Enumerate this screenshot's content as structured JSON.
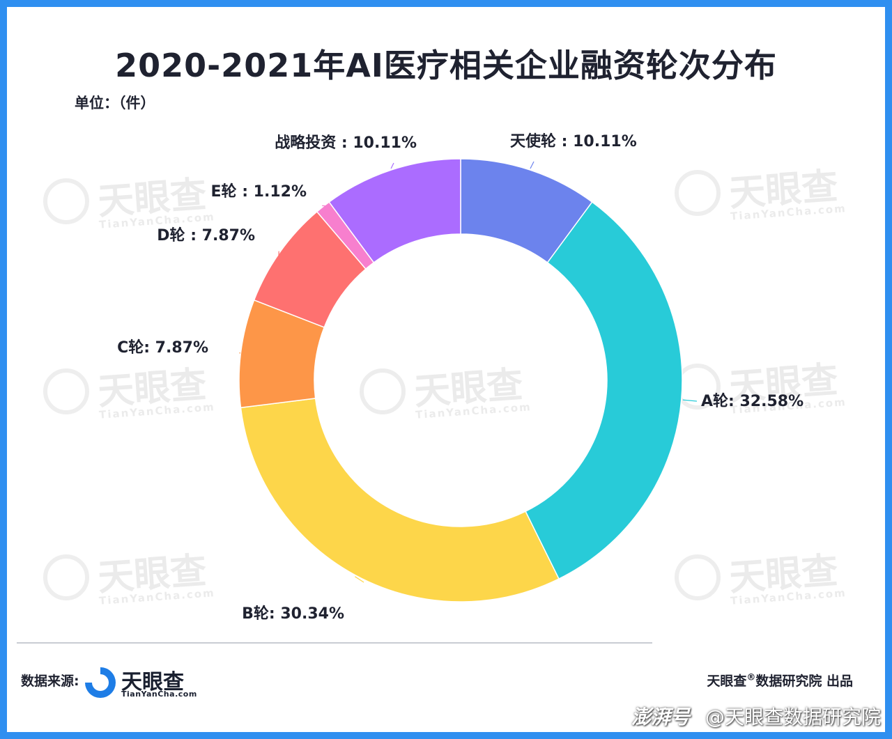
{
  "title": "2020-2021年AI医疗相关企业融资轮次分布",
  "unit": "单位：（件）",
  "chart_data": {
    "type": "pie",
    "donut": true,
    "labels": [
      "天使轮",
      "A轮",
      "B轮",
      "C轮",
      "D轮",
      "E轮",
      "战略投资"
    ],
    "values": [
      10.11,
      32.58,
      30.34,
      7.87,
      7.87,
      1.12,
      10.11
    ],
    "value_labels": [
      "天使轮 : 10.11%",
      "A轮: 32.58%",
      "B轮: 30.34%",
      "C轮: 7.87%",
      "D轮 : 7.87%",
      "E轮 : 1.12%",
      "战略投资 : 10.11%"
    ],
    "colors": [
      "#6c83ed",
      "#28cbd8",
      "#fdd64a",
      "#fd9648",
      "#fe7170",
      "#f77fce",
      "#ab6cff"
    ],
    "start_angle_deg": 0,
    "direction": "clockwise"
  },
  "watermark": {
    "text": "天眼查",
    "sub": "TianYanCha.com"
  },
  "footer": {
    "source_label": "数据来源:",
    "logo_name": "天眼查",
    "logo_sub": "TianYanCha.com",
    "producer_prefix": "天眼查",
    "producer_mark": "®",
    "producer_suffix": "数据研究院 出品",
    "platform": "澎湃号",
    "account": "@天眼查数据研究院"
  }
}
